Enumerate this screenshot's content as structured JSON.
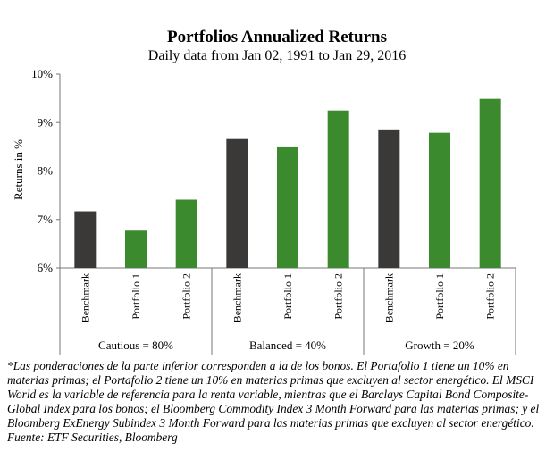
{
  "chart_data": {
    "type": "bar",
    "title": "Portfolios Annualized Returns",
    "subtitle": "Daily data from Jan 02, 1991 to Jan 29, 2016",
    "ylabel": "Returns in %",
    "xlabel": "",
    "ylim": [
      6,
      10
    ],
    "yticks": [
      "6%",
      "7%",
      "8%",
      "9%",
      "10%"
    ],
    "grid": false,
    "categories": [
      "Benchmark",
      "Portfolio 1",
      "Portfolio 2",
      "Benchmark",
      "Portfolio 1",
      "Portfolio 2",
      "Benchmark",
      "Portfolio 1",
      "Portfolio 2"
    ],
    "values": [
      7.17,
      6.77,
      7.41,
      8.66,
      8.49,
      9.25,
      8.86,
      8.79,
      9.49
    ],
    "groups": [
      {
        "label": "Cautious = 80%",
        "span": [
          0,
          2
        ]
      },
      {
        "label": "Balanced = 40%",
        "span": [
          3,
          5
        ]
      },
      {
        "label": "Growth = 20%",
        "span": [
          6,
          8
        ]
      }
    ],
    "colors": {
      "Benchmark": "#3b3838",
      "Portfolio": "#3c8a2e"
    }
  },
  "footnote": {
    "text": "*Las ponderaciones de la parte inferior corresponden a la de los bonos. El Portafolio 1 tiene un 10% en materias primas; el Portafolio 2 tiene un 10% en materias primas que excluyen al sector energético. El MSCI World es la variable de referencia para la renta variable, mientras que el Barclays Capital Bond Composite-Global Index para los bonos; el Bloomberg Commodity Index 3 Month Forward para las materias primas; y el Bloomberg ExEnergy Subindex 3 Month Forward para las materias primas que excluyen al sector energético.",
    "source": "Fuente: ETF Securities, Bloomberg"
  }
}
